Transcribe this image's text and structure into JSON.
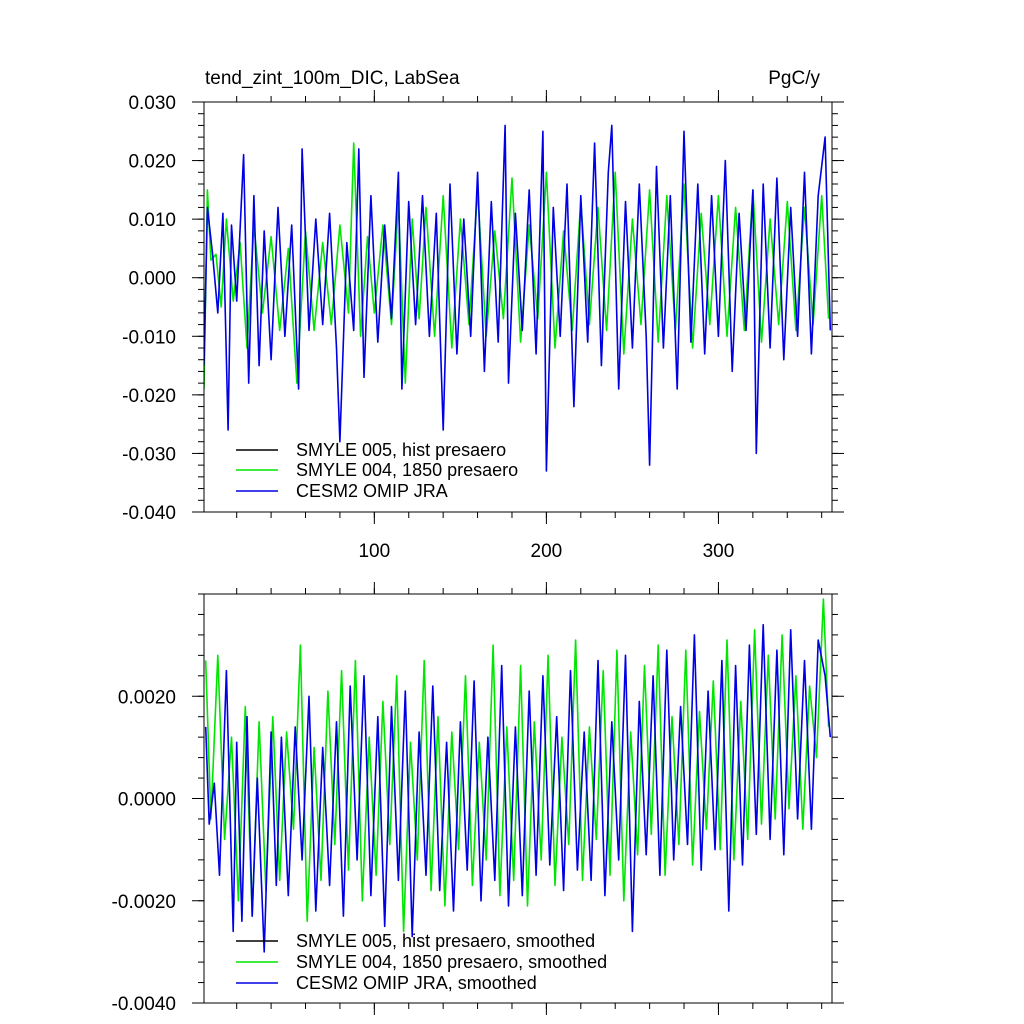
{
  "colors": {
    "background": "#ffffff",
    "axis": "#000000",
    "series": [
      "#000000",
      "#00e600",
      "#0000e6"
    ]
  },
  "chart_data": [
    {
      "type": "line",
      "title": "tend_zint_100m_DIC, LabSea",
      "units": "PgC/y",
      "xlim": [
        1,
        366
      ],
      "ylim": [
        -0.04,
        0.03
      ],
      "x_ticks": [
        100,
        200,
        300
      ],
      "x_tick_labels": [
        "100",
        "200",
        "300"
      ],
      "y_ticks": [
        -0.04,
        -0.03,
        -0.02,
        -0.01,
        0.0,
        0.01,
        0.02,
        0.03
      ],
      "y_tick_labels": [
        "-0.040",
        "-0.030",
        "-0.020",
        "-0.010",
        "0.000",
        "0.010",
        "0.020",
        "0.030"
      ],
      "legend_position": "bottom-left",
      "series": [
        {
          "name": "SMYLE 005, hist presaero",
          "values": []
        },
        {
          "name": "SMYLE 004, 1850 presaero",
          "x": [
            1,
            3,
            5,
            8,
            11,
            14,
            18,
            22,
            26,
            30,
            35,
            40,
            45,
            50,
            55,
            60,
            65,
            70,
            75,
            80,
            85,
            88,
            92,
            96,
            100,
            105,
            110,
            114,
            118,
            122,
            126,
            130,
            135,
            140,
            145,
            150,
            155,
            160,
            165,
            170,
            175,
            180,
            185,
            190,
            195,
            200,
            205,
            210,
            215,
            220,
            225,
            230,
            235,
            240,
            245,
            250,
            255,
            260,
            265,
            270,
            275,
            280,
            285,
            290,
            295,
            300,
            305,
            310,
            315,
            320,
            325,
            330,
            335,
            340,
            345,
            350,
            355,
            360,
            364
          ],
          "values": [
            -0.019,
            0.015,
            0.003,
            0.004,
            -0.005,
            0.01,
            -0.004,
            0.006,
            -0.012,
            0.009,
            -0.006,
            0.007,
            -0.009,
            0.005,
            -0.018,
            0.008,
            -0.009,
            0.006,
            -0.008,
            0.009,
            -0.006,
            0.023,
            -0.01,
            0.007,
            -0.006,
            0.009,
            -0.008,
            0.013,
            -0.018,
            0.01,
            -0.007,
            0.012,
            -0.01,
            0.014,
            -0.012,
            0.01,
            -0.008,
            0.015,
            -0.01,
            0.008,
            -0.007,
            0.017,
            -0.011,
            0.009,
            -0.007,
            0.018,
            -0.012,
            0.008,
            -0.009,
            0.013,
            -0.008,
            0.012,
            -0.009,
            0.018,
            -0.013,
            0.01,
            -0.008,
            0.015,
            -0.011,
            0.014,
            -0.009,
            0.016,
            -0.012,
            0.011,
            -0.008,
            0.014,
            -0.01,
            0.012,
            -0.009,
            0.015,
            -0.011,
            0.01,
            -0.008,
            0.013,
            -0.009,
            0.012,
            -0.008,
            0.014,
            -0.007
          ]
        },
        {
          "name": "CESM2 OMIP JRA",
          "x": [
            1,
            3,
            6,
            9,
            12,
            15,
            17,
            20,
            24,
            27,
            30,
            33,
            36,
            40,
            44,
            48,
            52,
            56,
            58,
            62,
            66,
            70,
            74,
            78,
            80,
            84,
            88,
            91,
            94,
            98,
            102,
            106,
            110,
            114,
            116,
            120,
            124,
            128,
            132,
            136,
            140,
            144,
            148,
            152,
            156,
            160,
            164,
            168,
            172,
            176,
            178,
            182,
            186,
            190,
            194,
            198,
            200,
            204,
            208,
            212,
            216,
            220,
            224,
            228,
            232,
            236,
            238,
            242,
            246,
            250,
            254,
            258,
            260,
            264,
            268,
            272,
            276,
            280,
            284,
            288,
            292,
            296,
            300,
            304,
            308,
            312,
            316,
            320,
            322,
            326,
            330,
            334,
            338,
            342,
            346,
            350,
            354,
            358,
            362,
            365
          ],
          "values": [
            -0.015,
            0.012,
            0.004,
            -0.006,
            0.011,
            -0.026,
            0.009,
            -0.004,
            0.021,
            -0.018,
            0.014,
            -0.015,
            0.008,
            -0.014,
            0.012,
            -0.01,
            0.009,
            -0.019,
            0.022,
            -0.009,
            0.01,
            -0.008,
            0.011,
            -0.012,
            -0.028,
            0.006,
            -0.009,
            0.022,
            -0.017,
            0.014,
            -0.011,
            0.009,
            -0.007,
            0.018,
            -0.019,
            0.013,
            -0.008,
            0.014,
            -0.01,
            0.011,
            -0.026,
            0.016,
            -0.013,
            0.01,
            -0.01,
            0.018,
            -0.016,
            0.013,
            -0.011,
            0.026,
            -0.018,
            0.011,
            -0.009,
            0.015,
            -0.013,
            0.025,
            -0.033,
            0.012,
            -0.01,
            0.016,
            -0.022,
            0.014,
            -0.011,
            0.023,
            -0.015,
            0.018,
            0.026,
            -0.019,
            0.013,
            -0.012,
            0.016,
            -0.01,
            -0.032,
            0.019,
            -0.012,
            0.014,
            -0.019,
            0.025,
            -0.011,
            0.016,
            -0.013,
            0.014,
            -0.01,
            0.02,
            -0.016,
            0.011,
            -0.009,
            0.015,
            -0.03,
            0.016,
            -0.012,
            0.017,
            -0.014,
            0.012,
            -0.01,
            0.018,
            -0.013,
            0.014,
            0.024,
            -0.009
          ]
        }
      ]
    },
    {
      "type": "line",
      "xlim": [
        1,
        366
      ],
      "ylim": [
        -0.004,
        0.004
      ],
      "x_ticks": [
        100,
        200,
        300
      ],
      "y_ticks": [
        -0.004,
        -0.002,
        0.0,
        0.002
      ],
      "y_tick_labels": [
        "-0.0040",
        "-0.0020",
        "0.0000",
        "0.0020"
      ],
      "legend_position": "bottom-left",
      "series": [
        {
          "name": "SMYLE 005, hist presaero, smoothed",
          "values": []
        },
        {
          "name": "SMYLE 004, 1850 presaero, smoothed",
          "x": [
            2,
            5,
            9,
            13,
            17,
            21,
            25,
            29,
            33,
            37,
            41,
            45,
            49,
            53,
            57,
            61,
            65,
            69,
            73,
            77,
            81,
            85,
            89,
            93,
            97,
            101,
            105,
            109,
            113,
            117,
            121,
            125,
            129,
            133,
            137,
            141,
            145,
            149,
            153,
            157,
            161,
            165,
            169,
            173,
            177,
            181,
            185,
            189,
            193,
            197,
            201,
            205,
            209,
            213,
            217,
            221,
            225,
            229,
            233,
            237,
            241,
            245,
            249,
            253,
            257,
            261,
            265,
            269,
            273,
            277,
            281,
            285,
            289,
            293,
            297,
            301,
            305,
            309,
            313,
            317,
            321,
            325,
            329,
            333,
            337,
            341,
            345,
            349,
            353,
            357,
            361,
            364
          ],
          "values": [
            0.0027,
            -0.0004,
            0.0028,
            -0.0008,
            0.0012,
            -0.002,
            0.0018,
            -0.0023,
            0.0015,
            -0.0018,
            0.0016,
            -0.0016,
            0.0013,
            -0.0006,
            0.003,
            -0.0024,
            0.001,
            -0.0016,
            0.0021,
            -0.0009,
            0.0025,
            -0.0014,
            0.0027,
            -0.002,
            0.0012,
            -0.0015,
            0.0019,
            -0.0009,
            0.0024,
            -0.0026,
            0.0011,
            -0.0012,
            0.0027,
            -0.0018,
            0.0016,
            -0.0021,
            0.0013,
            -0.001,
            0.0024,
            -0.0017,
            0.0011,
            -0.0012,
            0.003,
            -0.0019,
            0.0014,
            -0.0016,
            0.0026,
            -0.0021,
            0.0015,
            -0.0012,
            0.0028,
            -0.0017,
            0.0012,
            -0.0009,
            0.0031,
            -0.0016,
            0.0014,
            -0.0008,
            0.0025,
            -0.0015,
            0.0029,
            -0.002,
            0.0013,
            -0.0011,
            0.0026,
            -0.0007,
            0.003,
            -0.0015,
            0.0016,
            -0.0009,
            0.0029,
            -0.0013,
            0.0017,
            -0.0006,
            0.0023,
            -0.001,
            0.0031,
            -0.0012,
            0.0019,
            -0.0008,
            0.0033,
            -0.0005,
            0.0028,
            -0.0004,
            0.0032,
            -0.0002,
            0.0024,
            -0.0006,
            0.0022,
            0.0008,
            0.0039,
            0.0014
          ]
        },
        {
          "name": "CESM2 OMIP JRA, smoothed",
          "x": [
            2,
            4,
            7,
            10,
            14,
            18,
            20,
            23,
            26,
            29,
            32,
            36,
            40,
            43,
            46,
            50,
            54,
            58,
            62,
            66,
            70,
            74,
            78,
            82,
            86,
            90,
            94,
            98,
            102,
            106,
            110,
            114,
            118,
            122,
            126,
            130,
            134,
            138,
            142,
            146,
            150,
            154,
            158,
            162,
            166,
            170,
            174,
            178,
            182,
            186,
            190,
            194,
            198,
            202,
            206,
            210,
            214,
            218,
            222,
            226,
            230,
            234,
            238,
            242,
            246,
            250,
            254,
            258,
            262,
            266,
            270,
            274,
            278,
            282,
            286,
            290,
            294,
            298,
            302,
            306,
            310,
            314,
            318,
            322,
            326,
            330,
            334,
            338,
            342,
            346,
            350,
            354,
            358,
            362,
            365
          ],
          "values": [
            0.0014,
            -0.0005,
            0.0003,
            -0.0015,
            0.0025,
            -0.0026,
            0.0011,
            -0.0024,
            0.0016,
            -0.0023,
            0.0004,
            -0.003,
            0.0013,
            -0.0017,
            0.0012,
            -0.0019,
            0.0014,
            -0.0012,
            0.002,
            -0.0022,
            0.001,
            -0.0017,
            0.0015,
            -0.0023,
            0.0022,
            -0.0012,
            0.0024,
            -0.0019,
            0.0016,
            -0.0025,
            0.0018,
            -0.0016,
            0.0021,
            -0.0027,
            0.0013,
            -0.0015,
            0.0022,
            -0.0018,
            0.0011,
            -0.0022,
            0.0015,
            -0.0014,
            0.0023,
            -0.002,
            0.0012,
            -0.0016,
            0.0026,
            -0.0021,
            0.0014,
            -0.0019,
            0.0021,
            -0.0015,
            0.0024,
            -0.0013,
            0.0016,
            -0.0018,
            0.0025,
            -0.0014,
            0.0013,
            -0.0016,
            0.0027,
            -0.0019,
            0.0015,
            -0.0012,
            0.0028,
            -0.0026,
            0.0019,
            -0.0011,
            0.0024,
            -0.0015,
            0.0029,
            -0.0012,
            0.0018,
            -0.0009,
            0.0032,
            -0.0014,
            0.0021,
            -0.001,
            0.0027,
            -0.0022,
            0.0026,
            -0.0013,
            0.003,
            -0.0007,
            0.0034,
            -0.0008,
            0.0029,
            -0.0011,
            0.0033,
            -0.0004,
            0.0027,
            -0.0006,
            0.0031,
            0.0024,
            0.0012
          ]
        }
      ]
    }
  ]
}
